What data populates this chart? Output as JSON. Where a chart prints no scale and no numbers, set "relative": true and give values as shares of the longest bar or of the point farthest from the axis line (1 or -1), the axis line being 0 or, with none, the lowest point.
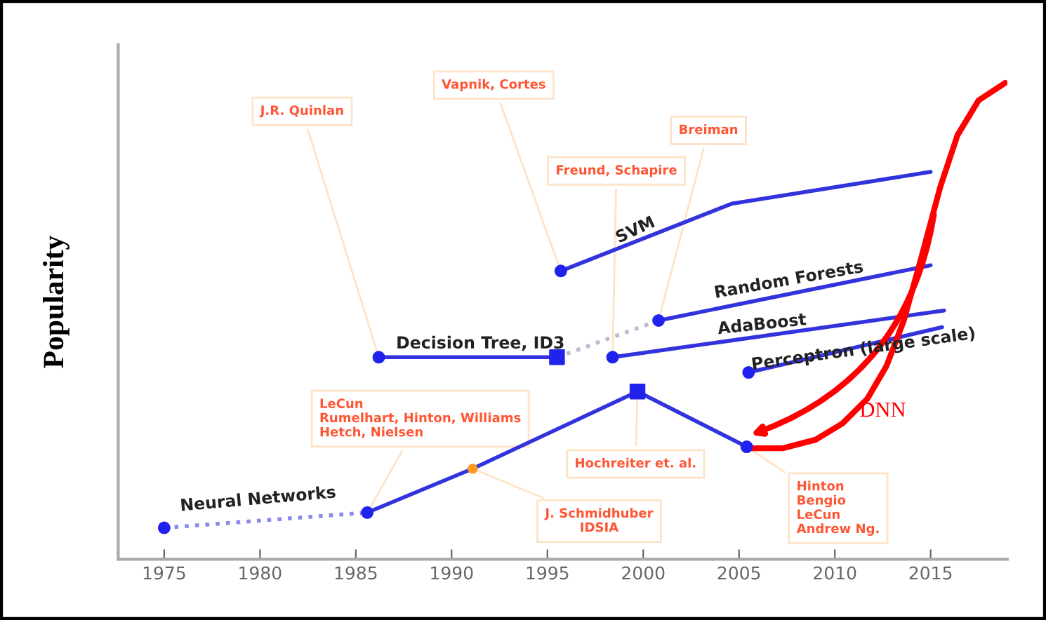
{
  "chart_data": {
    "type": "line",
    "relative": true,
    "ylabel": "Popularity",
    "xlim": [
      1972.6,
      2019
    ],
    "xticks": [
      1975,
      1980,
      1985,
      1990,
      1995,
      2000,
      2005,
      2010,
      2015
    ],
    "grid": false,
    "tick_labels": "x",
    "series": [
      {
        "name": "Neural Networks",
        "color": "#3333dd",
        "line_style": "solid",
        "marker": "none",
        "x": [
          1985.6,
          1991.1,
          1999.7,
          2005.4
        ],
        "values": [
          0.098,
          0.19,
          0.352,
          0.236
        ]
      },
      {
        "color": "#8888ee",
        "line_style": "dotted",
        "marker": "none",
        "x": [
          1975,
          1985.6
        ],
        "values": [
          0.066,
          0.098
        ]
      },
      {
        "name": "Decision Tree, ID3",
        "color": "#3333dd",
        "line_style": "solid",
        "marker": "none",
        "x": [
          1986.2,
          1995.5
        ],
        "values": [
          0.424,
          0.424
        ]
      },
      {
        "color": "#bbbbcc",
        "line_style": "dotted",
        "marker": "none",
        "x": [
          1995.5,
          2000.8
        ],
        "values": [
          0.424,
          0.501
        ]
      },
      {
        "name": "SVM",
        "color": "#3333dd",
        "line_style": "solid",
        "marker": "none",
        "x": [
          1995.7,
          2004.6,
          2015
        ],
        "values": [
          0.605,
          0.746,
          0.813
        ]
      },
      {
        "name": "Random Forests",
        "color": "#3333dd",
        "line_style": "solid",
        "marker": "none",
        "x": [
          2000.8,
          2015
        ],
        "values": [
          0.501,
          0.617
        ]
      },
      {
        "name": "AdaBoost",
        "color": "#3333dd",
        "line_style": "solid",
        "marker": "none",
        "x": [
          1998.4,
          2015.7
        ],
        "values": [
          0.424,
          0.522
        ]
      },
      {
        "name": "Perceptron (large scale)",
        "color": "#3333dd",
        "line_style": "solid",
        "marker": "none",
        "x": [
          2005.5,
          2015.6
        ],
        "values": [
          0.392,
          0.487
        ]
      },
      {
        "name": "DNN",
        "color": "#ff0000",
        "line_style": "solid",
        "marker": "none",
        "x": [
          2005.4,
          2007.3,
          2009.0,
          2010.4,
          2011.7,
          2012.7,
          2013.6,
          2014.5,
          2015.5,
          2016.4,
          2017.5,
          2018.9
        ],
        "values": [
          0.233,
          0.233,
          0.251,
          0.285,
          0.337,
          0.406,
          0.501,
          0.631,
          0.781,
          0.89,
          0.963,
          1.0
        ]
      },
      {
        "type": "scatter",
        "marker": "circle",
        "color": "#2222ee",
        "x": [
          1975,
          1985.6,
          2005.4,
          1986.2,
          1995.7,
          2000.8,
          1998.4,
          2005.5
        ],
        "values": [
          0.066,
          0.098,
          0.236,
          0.424,
          0.605,
          0.501,
          0.424,
          0.392
        ]
      },
      {
        "type": "scatter",
        "marker": "square",
        "color": "#2222ee",
        "x": [
          1995.5,
          1999.7
        ],
        "values": [
          0.424,
          0.352
        ]
      },
      {
        "type": "scatter",
        "marker": "circle",
        "color": "#ff9922",
        "x": [
          1991.1
        ],
        "values": [
          0.19
        ]
      }
    ],
    "annotations": [
      {
        "text": "J.R. Quinlan",
        "x": 1986.2,
        "y": 0.424
      },
      {
        "text": "Vapnik, Cortes",
        "x": 1995.7,
        "y": 0.605
      },
      {
        "text": "Breiman",
        "x": 2000.8,
        "y": 0.501
      },
      {
        "text": "Freund, Schapire",
        "x": 1998.4,
        "y": 0.424
      },
      {
        "text": "LeCun\nRumelhart, Hinton, Williams\nHetch, Nielsen",
        "x": 1985.6,
        "y": 0.098
      },
      {
        "text": "Hochreiter et. al.",
        "x": 1999.7,
        "y": 0.352
      },
      {
        "text": "J. Schmidhuber\nIDSIA",
        "x": 1991.1,
        "y": 0.19
      },
      {
        "text": "Hinton\nBengio\nLeCun\nAndrew Ng.",
        "x": 2005.4,
        "y": 0.236
      }
    ]
  }
}
